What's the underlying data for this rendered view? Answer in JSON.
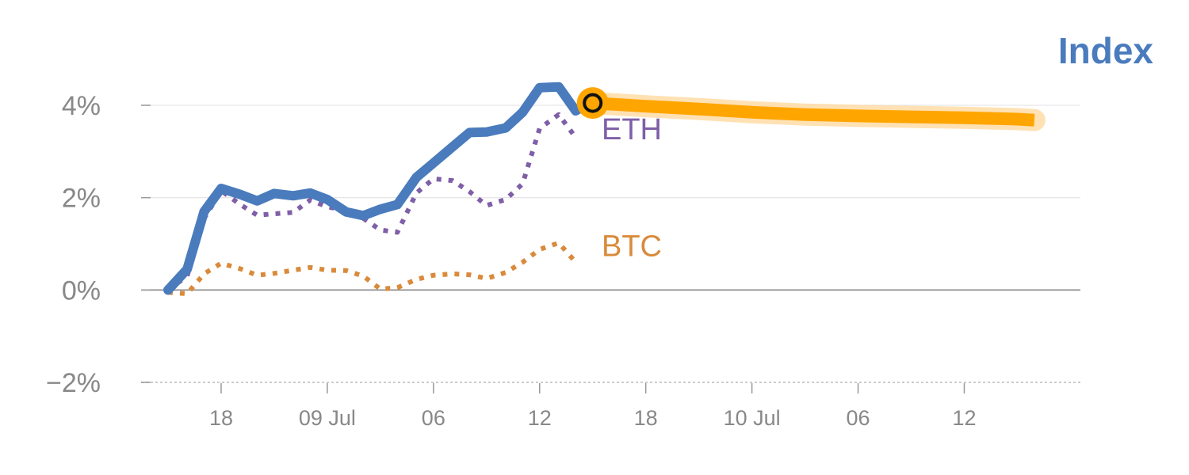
{
  "chart_data": {
    "type": "line",
    "title": "Index",
    "xlabel": "",
    "ylabel": "",
    "ylim": [
      -2,
      4.5
    ],
    "y_ticks": [
      {
        "value": 4,
        "label": "4%"
      },
      {
        "value": 2,
        "label": "2%"
      },
      {
        "value": 0,
        "label": "0%"
      },
      {
        "value": -2,
        "label": "−2%"
      }
    ],
    "x_range": [
      0,
      42
    ],
    "x_ticks": [
      {
        "x": 2.5,
        "label": "18"
      },
      {
        "x": 7.5,
        "label": "09 Jul"
      },
      {
        "x": 12.5,
        "label": "06"
      },
      {
        "x": 17.5,
        "label": "12"
      },
      {
        "x": 22.5,
        "label": "18"
      },
      {
        "x": 27.5,
        "label": "10 Jul"
      },
      {
        "x": 32.5,
        "label": "06"
      },
      {
        "x": 37.5,
        "label": "12"
      }
    ],
    "grid": true,
    "colors": {
      "index": "#4a7bbd",
      "eth": "#7f5fa8",
      "btc": "#d98a3a",
      "forecast": "#ffa500",
      "forecast_glow": "#ffd9a0"
    },
    "series": [
      {
        "name": "Index",
        "style": "solid",
        "x": [
          0,
          0.9,
          1.7,
          2.5,
          3.4,
          4.2,
          5.0,
          5.9,
          6.7,
          7.5,
          8.4,
          9.2,
          10.0,
          10.8,
          11.7,
          12.5,
          13.4,
          14.2,
          15.0,
          15.9,
          16.7,
          17.5,
          18.4,
          19.2,
          19.8
        ],
        "values": [
          0.0,
          0.45,
          1.7,
          2.2,
          2.07,
          1.93,
          2.09,
          2.04,
          2.1,
          1.96,
          1.69,
          1.61,
          1.75,
          1.85,
          2.44,
          2.75,
          3.1,
          3.41,
          3.42,
          3.51,
          3.85,
          4.38,
          4.4,
          3.88,
          4.05
        ]
      },
      {
        "name": "ETH",
        "style": "dotted",
        "x": [
          0,
          0.9,
          1.7,
          2.5,
          3.4,
          4.2,
          5.0,
          5.9,
          6.7,
          7.5,
          8.4,
          9.2,
          10.0,
          10.8,
          11.7,
          12.5,
          13.4,
          14.2,
          15.0,
          15.9,
          16.7,
          17.5,
          18.4,
          19.2
        ],
        "values": [
          0.0,
          0.3,
          1.55,
          2.15,
          1.85,
          1.62,
          1.65,
          1.68,
          1.95,
          1.8,
          1.72,
          1.55,
          1.3,
          1.25,
          2.1,
          2.41,
          2.37,
          2.13,
          1.83,
          1.96,
          2.3,
          3.5,
          3.8,
          3.3
        ]
      },
      {
        "name": "BTC",
        "style": "dotted",
        "x": [
          0,
          0.9,
          1.7,
          2.5,
          3.4,
          4.2,
          5.0,
          5.9,
          6.7,
          7.5,
          8.4,
          9.2,
          10.0,
          10.8,
          11.7,
          12.5,
          13.4,
          14.2,
          15.0,
          15.9,
          16.7,
          17.5,
          18.4,
          19.2
        ],
        "values": [
          -0.05,
          -0.08,
          0.35,
          0.58,
          0.46,
          0.32,
          0.36,
          0.43,
          0.49,
          0.43,
          0.42,
          0.3,
          0.02,
          0.05,
          0.23,
          0.32,
          0.35,
          0.33,
          0.25,
          0.38,
          0.6,
          0.88,
          1.02,
          0.6
        ]
      },
      {
        "style": "forecast",
        "x": [
          20,
          22.5,
          25,
          27.5,
          30,
          32.5,
          35,
          37.5,
          40,
          40.8
        ],
        "values": [
          4.05,
          3.98,
          3.92,
          3.85,
          3.8,
          3.77,
          3.75,
          3.73,
          3.7,
          3.68
        ]
      }
    ],
    "series_labels": [
      "ETH",
      "BTC"
    ],
    "marker": {
      "x": 20,
      "y": 4.05
    }
  }
}
